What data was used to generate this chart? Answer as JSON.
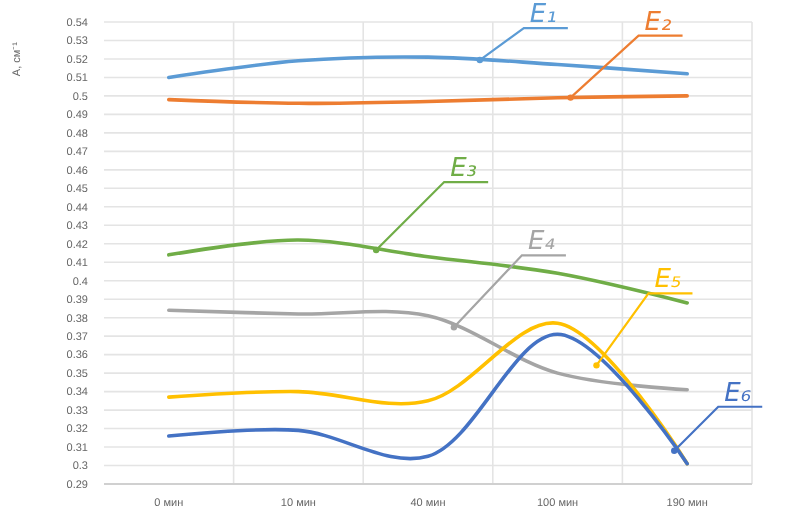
{
  "chart_data": {
    "type": "line",
    "ylabel": "A, см⁻¹",
    "categories": [
      "0 мин",
      "10 мин",
      "40 мин",
      "100 мин",
      "190 мин"
    ],
    "series": [
      {
        "name": "E₁",
        "color": "#5b9bd5",
        "values": [
          0.51,
          0.519,
          0.521,
          0.517,
          0.512
        ]
      },
      {
        "name": "E₂",
        "color": "#ed7d31",
        "values": [
          0.498,
          0.496,
          0.497,
          0.499,
          0.5
        ]
      },
      {
        "name": "E₃",
        "color": "#70ad47",
        "values": [
          0.414,
          0.422,
          0.413,
          0.404,
          0.388
        ]
      },
      {
        "name": "E₄",
        "color": "#a5a5a5",
        "values": [
          0.384,
          0.382,
          0.381,
          0.35,
          0.341
        ]
      },
      {
        "name": "E₅",
        "color": "#ffc000",
        "values": [
          0.337,
          0.34,
          0.335,
          0.377,
          0.301
        ]
      },
      {
        "name": "E₆",
        "color": "#4472c4",
        "values": [
          0.316,
          0.319,
          0.305,
          0.371,
          0.301
        ]
      }
    ],
    "ylim": [
      0.29,
      0.54
    ],
    "yticks": [
      0.29,
      0.3,
      0.31,
      0.32,
      0.33,
      0.34,
      0.35,
      0.36,
      0.37,
      0.38,
      0.39,
      0.4,
      0.41,
      0.42,
      0.43,
      0.44,
      0.45,
      0.46,
      0.47,
      0.48,
      0.49,
      0.5,
      0.51,
      0.52,
      0.53,
      0.54
    ],
    "grid": true,
    "line_style": "solid"
  }
}
